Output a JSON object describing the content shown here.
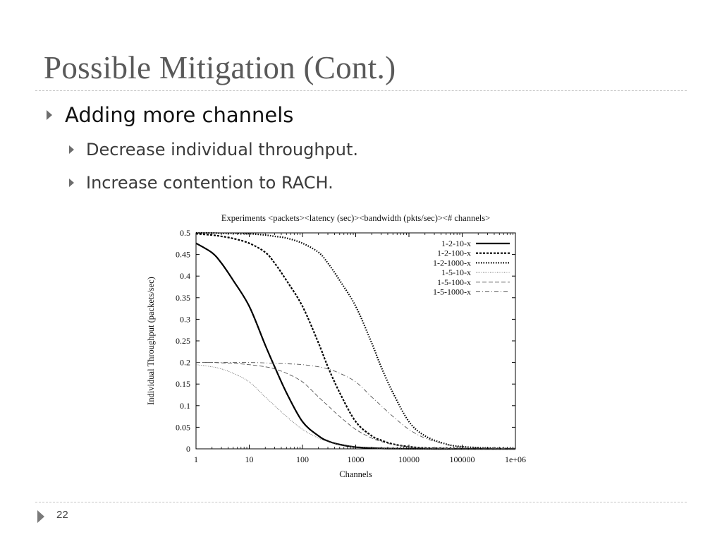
{
  "slide": {
    "title": "Possible Mitigation (Cont.)",
    "bullet_main": "Adding more channels",
    "sub_bullets": [
      "Decrease individual throughput.",
      "Increase contention to RACH."
    ],
    "page_number": "22"
  },
  "chart_data": {
    "type": "line",
    "title": "Experiments <packets><latency (sec)><bandwidth (pkts/sec)><# channels>",
    "xlabel": "Channels",
    "ylabel": "Individual Throughput (packets/sec)",
    "xscale": "log",
    "xlim": [
      1,
      1000000
    ],
    "ylim": [
      0,
      0.5
    ],
    "x_ticks": [
      "1",
      "10",
      "100",
      "1000",
      "10000",
      "100000",
      "1e+06"
    ],
    "y_ticks": [
      "0",
      "0.05",
      "0.1",
      "0.15",
      "0.2",
      "0.25",
      "0.3",
      "0.35",
      "0.4",
      "0.45",
      "0.5"
    ],
    "grid": false,
    "legend_position": "top-right",
    "x": [
      1,
      2,
      3,
      5,
      10,
      20,
      30,
      50,
      100,
      200,
      300,
      500,
      1000,
      2000,
      3000,
      5000,
      10000,
      20000,
      50000,
      100000,
      300000,
      1000000
    ],
    "series": [
      {
        "name": "1-2-10-x",
        "style": "solid-thick",
        "values": [
          0.476,
          0.454,
          0.43,
          0.39,
          0.33,
          0.24,
          0.19,
          0.13,
          0.063,
          0.03,
          0.018,
          0.01,
          0.004,
          0.002,
          0.001,
          0.0005,
          0.0002,
          0.0001,
          0,
          0,
          0,
          0
        ]
      },
      {
        "name": "1-2-100-x",
        "style": "dashed-thick",
        "values": [
          0.498,
          0.495,
          0.492,
          0.487,
          0.476,
          0.455,
          0.43,
          0.39,
          0.33,
          0.245,
          0.19,
          0.13,
          0.063,
          0.03,
          0.02,
          0.011,
          0.005,
          0.002,
          0.001,
          0,
          0,
          0
        ]
      },
      {
        "name": "1-2-1000-x",
        "style": "dotted-thick",
        "values": [
          0.5,
          0.5,
          0.499,
          0.499,
          0.498,
          0.495,
          0.492,
          0.488,
          0.476,
          0.455,
          0.43,
          0.39,
          0.33,
          0.245,
          0.19,
          0.13,
          0.063,
          0.03,
          0.011,
          0.005,
          0.002,
          0
        ]
      },
      {
        "name": "1-5-10-x",
        "style": "dotted-thin",
        "values": [
          0.195,
          0.19,
          0.185,
          0.175,
          0.155,
          0.12,
          0.1,
          0.075,
          0.045,
          0.025,
          0.017,
          0.01,
          0.005,
          0.002,
          0.001,
          0.0005,
          0,
          0,
          0,
          0,
          0,
          0
        ]
      },
      {
        "name": "1-5-100-x",
        "style": "dashed-thin",
        "values": [
          0.2,
          0.2,
          0.199,
          0.198,
          0.195,
          0.19,
          0.185,
          0.175,
          0.155,
          0.12,
          0.1,
          0.075,
          0.045,
          0.025,
          0.017,
          0.01,
          0.005,
          0.002,
          0.001,
          0,
          0,
          0
        ]
      },
      {
        "name": "1-5-1000-x",
        "style": "dashdot-thin",
        "values": [
          0.2,
          0.2,
          0.2,
          0.2,
          0.2,
          0.199,
          0.198,
          0.197,
          0.195,
          0.19,
          0.185,
          0.175,
          0.155,
          0.12,
          0.1,
          0.075,
          0.045,
          0.025,
          0.01,
          0.005,
          0.002,
          0
        ]
      }
    ]
  }
}
